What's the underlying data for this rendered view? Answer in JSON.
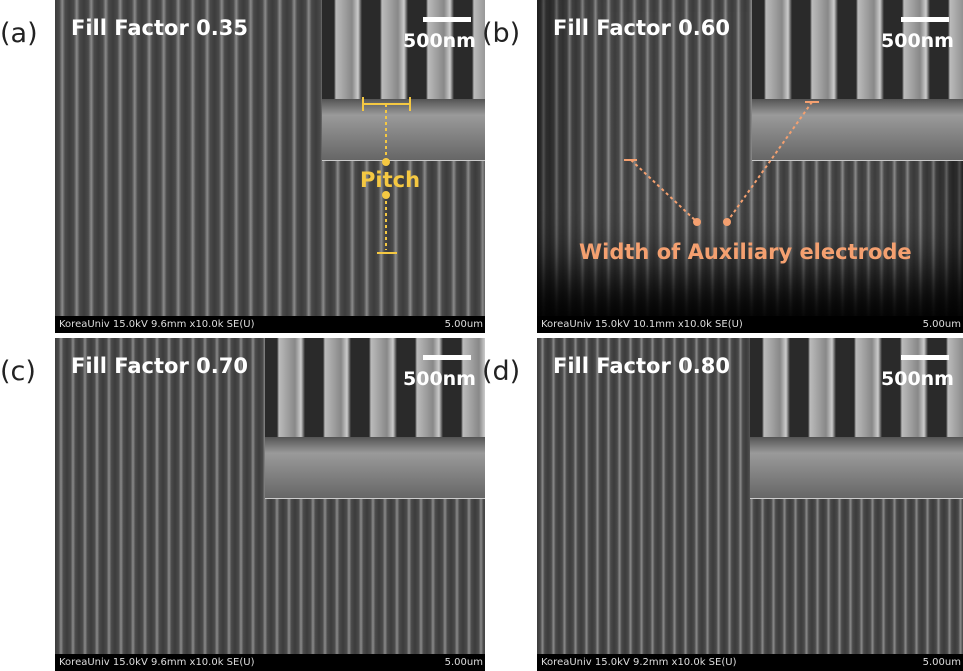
{
  "panels": [
    {
      "letter": "(a)",
      "title": "Fill Factor 0.35",
      "scale_bar": "500nm",
      "footer": "KoreaUniv 15.0kV 9.6mm x10.0k SE(U)",
      "footer_scale": "5.00um",
      "annotation": "Pitch"
    },
    {
      "letter": "(b)",
      "title": "Fill Factor 0.60",
      "scale_bar": "500nm",
      "footer": "KoreaUniv 15.0kV 10.1mm x10.0k SE(U)",
      "footer_scale": "5.00um",
      "annotation": "Width of Auxiliary electrode"
    },
    {
      "letter": "(c)",
      "title": "Fill Factor 0.70",
      "scale_bar": "500nm",
      "footer": "KoreaUniv 15.0kV 9.6mm x10.0k SE(U)",
      "footer_scale": "5.00um"
    },
    {
      "letter": "(d)",
      "title": "Fill Factor 0.80",
      "scale_bar": "500nm",
      "footer": "KoreaUniv 15.0kV 9.2mm x10.0k SE(U)",
      "footer_scale": "5.00um"
    }
  ]
}
